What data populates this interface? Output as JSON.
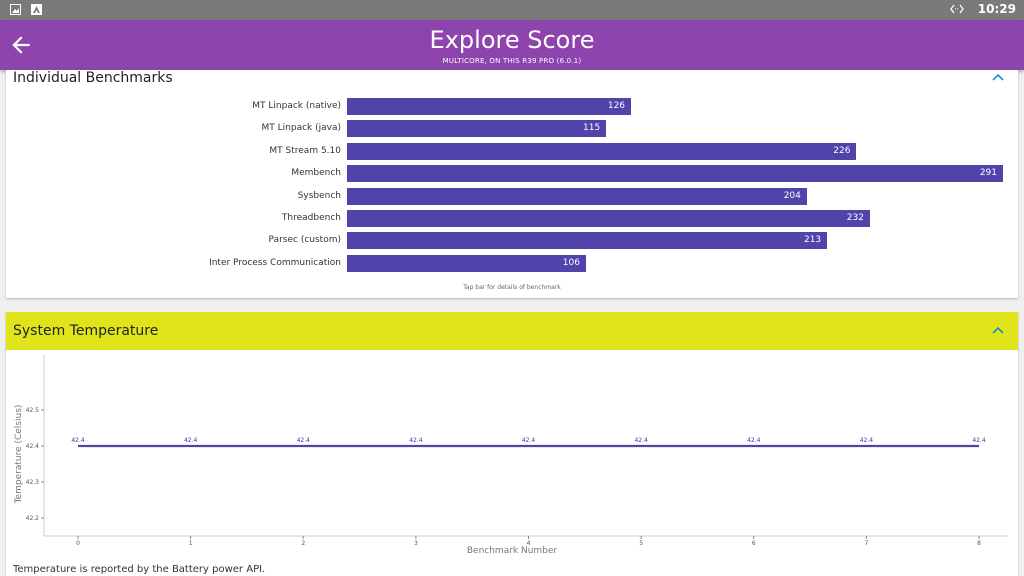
{
  "statusbar": {
    "left_icons": [
      "image-icon",
      "app-a-icon"
    ],
    "right_icons": [
      "code-arrows-icon"
    ],
    "time": "10:29"
  },
  "appbar": {
    "title": "Explore Score",
    "subtitle": "MULTICORE, ON THIS R39 PRO (6.0.1)",
    "back_icon": "arrow-left-icon"
  },
  "benchmarks": {
    "title": "Individual Benchmarks",
    "collapse_icon": "chevron-up-icon",
    "bar_color": "#5044ab",
    "max_value": 291,
    "items": [
      {
        "label": "MT Linpack (native)",
        "value": 126,
        "value_label": "126"
      },
      {
        "label": "MT Linpack (java)",
        "value": 115,
        "value_label": "115"
      },
      {
        "label": "MT Stream 5.10",
        "value": 226,
        "value_label": "226"
      },
      {
        "label": "Membench",
        "value": 291,
        "value_label": "291"
      },
      {
        "label": "Sysbench",
        "value": 204,
        "value_label": "204"
      },
      {
        "label": "Threadbench",
        "value": 232,
        "value_label": "232"
      },
      {
        "label": "Parsec (custom)",
        "value": 213,
        "value_label": "213"
      },
      {
        "label": "Inter Process Communication",
        "value": 106,
        "value_label": "106"
      }
    ],
    "hint": "Tap bar for details of benchmark"
  },
  "temperature": {
    "title": "System Temperature",
    "header_color": "#dfe51a",
    "collapse_icon": "chevron-up-icon",
    "footnote": "Temperature is reported by the Battery power API.",
    "chart_data": {
      "type": "line",
      "x": [
        0,
        1,
        2,
        3,
        4,
        5,
        6,
        7,
        8
      ],
      "series": [
        {
          "values": [
            42.4,
            42.4,
            42.4,
            42.4,
            42.4,
            42.4,
            42.4,
            42.4,
            42.4
          ]
        }
      ],
      "point_labels": [
        "42.4",
        "42.4",
        "42.4",
        "42.4",
        "42.4",
        "42.4",
        "42.4",
        "42.4",
        "42.4"
      ],
      "xlabel": "Benchmark Number",
      "ylabel": "Temperature (Celsius)",
      "x_ticks": [
        "0",
        "1",
        "2",
        "3",
        "4",
        "5",
        "6",
        "7",
        "8"
      ],
      "y_ticks": [
        "42.5",
        "42.4",
        "42.3",
        "42.2"
      ],
      "y_tick_values": [
        42.5,
        42.4,
        42.3,
        42.2
      ],
      "xlim": [
        0,
        8
      ],
      "ylim": [
        42.2,
        42.5
      ],
      "line_color": "#5044ab",
      "grid": false
    }
  }
}
